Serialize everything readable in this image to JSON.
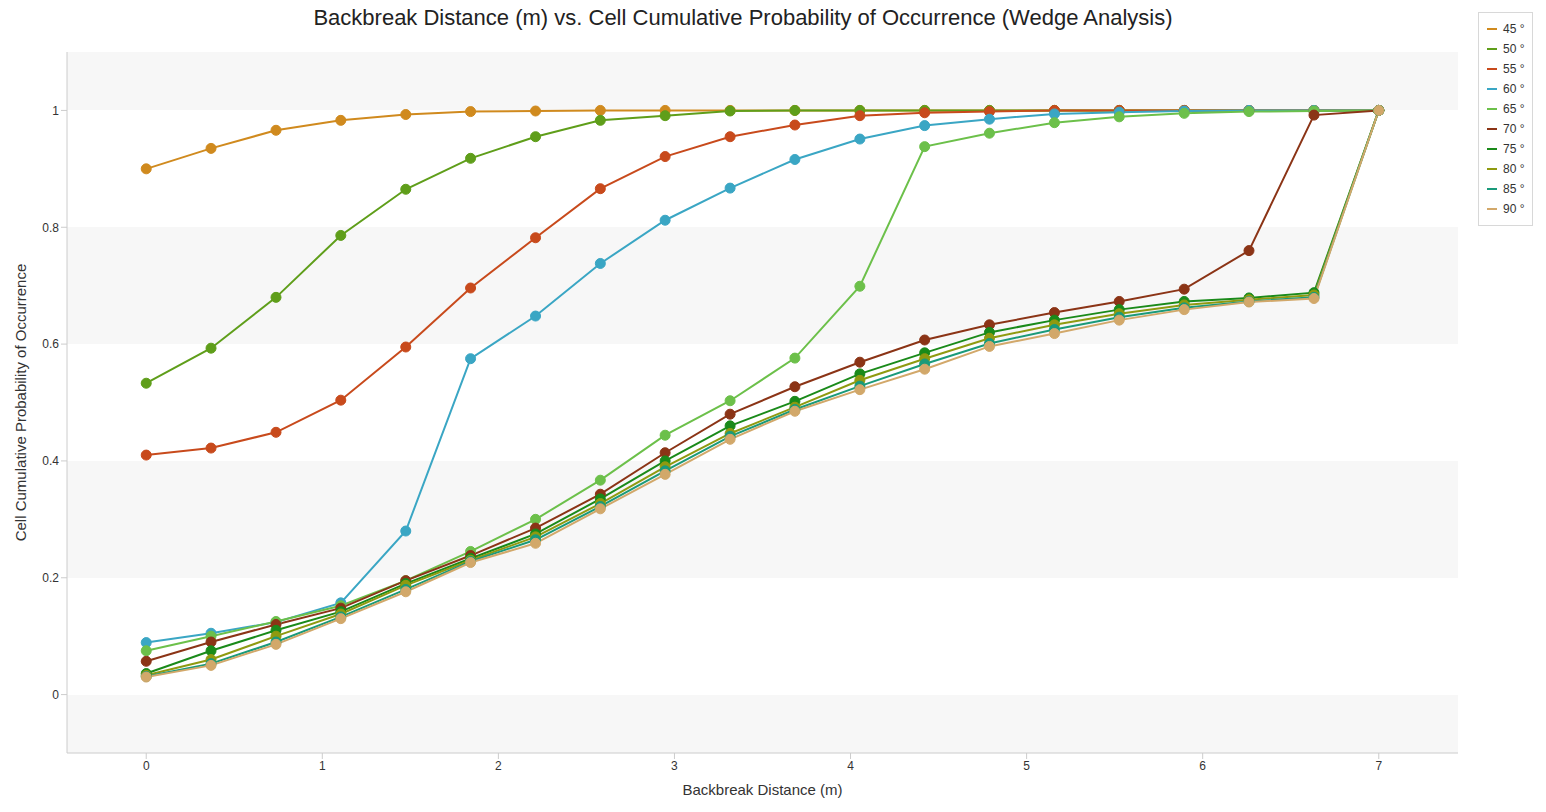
{
  "chart_data": {
    "type": "line",
    "title": "Backbreak Distance (m) vs. Cell Cumulative Probability of Occurrence (Wedge Analysis)",
    "x_label": "Backbreak Distance (m)",
    "y_label": "Cell Cumulative Probability of Occurrence",
    "x": [
      0,
      0.368,
      0.737,
      1.105,
      1.474,
      1.842,
      2.211,
      2.579,
      2.947,
      3.316,
      3.684,
      4.053,
      4.421,
      4.789,
      5.158,
      5.526,
      5.895,
      6.263,
      6.632,
      7
    ],
    "xlim": [
      -0.45,
      7.45
    ],
    "xticks": [
      0,
      1,
      2,
      3,
      4,
      5,
      6,
      7
    ],
    "ylim": [
      -0.1,
      1.1
    ],
    "yticks": [
      0,
      0.2,
      0.4,
      0.6,
      0.8,
      1
    ],
    "grid": true,
    "legend": "right",
    "marker": "circle",
    "series": [
      {
        "name": "45 °",
        "color": "#d08a1e",
        "values": [
          0.9,
          0.935,
          0.966,
          0.983,
          0.993,
          0.998,
          0.999,
          1,
          1,
          1,
          1,
          1,
          1,
          1,
          1,
          1,
          1,
          1,
          1,
          1
        ]
      },
      {
        "name": "50 °",
        "color": "#5f9e1a",
        "values": [
          0.533,
          0.593,
          0.68,
          0.786,
          0.865,
          0.918,
          0.955,
          0.983,
          0.991,
          0.999,
          1,
          1,
          1,
          1,
          1,
          1,
          1,
          1,
          1,
          1
        ]
      },
      {
        "name": "55 °",
        "color": "#c84a1c",
        "values": [
          0.41,
          0.422,
          0.449,
          0.504,
          0.595,
          0.696,
          0.782,
          0.866,
          0.921,
          0.955,
          0.975,
          0.991,
          0.996,
          0.998,
          1,
          1,
          1,
          1,
          1,
          1
        ]
      },
      {
        "name": "60 °",
        "color": "#3aa6c4",
        "values": [
          0.089,
          0.105,
          0.124,
          0.157,
          0.28,
          0.575,
          0.648,
          0.738,
          0.812,
          0.867,
          0.916,
          0.951,
          0.974,
          0.985,
          0.994,
          0.997,
          0.999,
          1,
          1,
          1
        ]
      },
      {
        "name": "65 °",
        "color": "#6cc04a",
        "values": [
          0.075,
          0.1,
          0.125,
          0.152,
          0.195,
          0.245,
          0.3,
          0.367,
          0.444,
          0.503,
          0.576,
          0.699,
          0.938,
          0.961,
          0.979,
          0.989,
          0.995,
          0.998,
          0.999,
          1
        ]
      },
      {
        "name": "70 °",
        "color": "#8b3416",
        "values": [
          0.057,
          0.09,
          0.12,
          0.148,
          0.195,
          0.238,
          0.285,
          0.343,
          0.414,
          0.48,
          0.527,
          0.569,
          0.607,
          0.633,
          0.654,
          0.673,
          0.694,
          0.76,
          0.992,
          1
        ]
      },
      {
        "name": "75 °",
        "color": "#1a8a1a",
        "values": [
          0.036,
          0.075,
          0.11,
          0.142,
          0.19,
          0.233,
          0.275,
          0.335,
          0.4,
          0.46,
          0.502,
          0.549,
          0.585,
          0.62,
          0.641,
          0.659,
          0.673,
          0.679,
          0.688,
          1
        ]
      },
      {
        "name": "80 °",
        "color": "#8f9a10",
        "values": [
          0.033,
          0.06,
          0.1,
          0.138,
          0.187,
          0.23,
          0.27,
          0.327,
          0.39,
          0.447,
          0.492,
          0.538,
          0.575,
          0.61,
          0.633,
          0.652,
          0.667,
          0.676,
          0.684,
          1
        ]
      },
      {
        "name": "85 °",
        "color": "#1a9a7a",
        "values": [
          0.031,
          0.053,
          0.09,
          0.133,
          0.18,
          0.228,
          0.265,
          0.322,
          0.383,
          0.442,
          0.488,
          0.528,
          0.566,
          0.601,
          0.625,
          0.646,
          0.662,
          0.673,
          0.68,
          1
        ]
      },
      {
        "name": "90 °",
        "color": "#d2a86a",
        "values": [
          0.03,
          0.05,
          0.086,
          0.13,
          0.176,
          0.226,
          0.259,
          0.318,
          0.377,
          0.437,
          0.485,
          0.522,
          0.557,
          0.596,
          0.618,
          0.641,
          0.659,
          0.672,
          0.678,
          1
        ]
      }
    ]
  }
}
